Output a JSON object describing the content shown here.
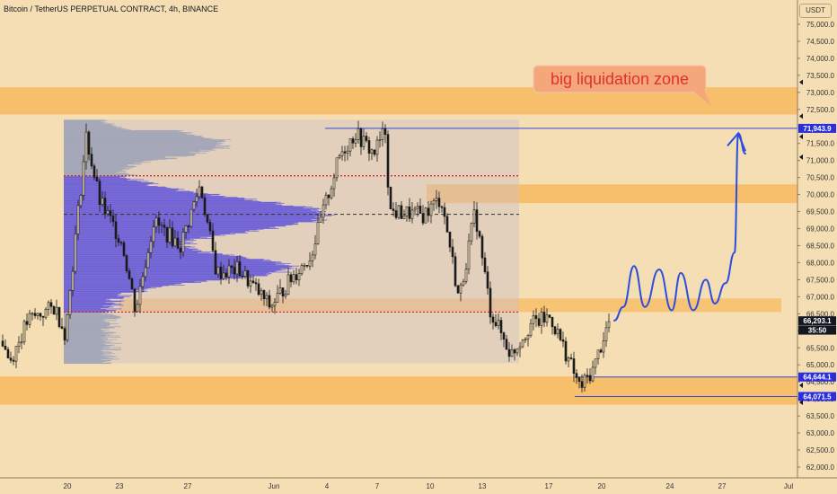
{
  "chart_data": {
    "type": "candlestick",
    "title": "Bitcoin / TetherUS PERPETUAL CONTRACT, 4h, BINANCE",
    "currency": "USDT",
    "annotation": "big liquidation zone",
    "y_ticks": [
      62000,
      62500,
      63000,
      63500,
      64000,
      64500,
      65000,
      65500,
      66000,
      66500,
      67000,
      67500,
      68000,
      68500,
      69000,
      69500,
      70000,
      70500,
      71000,
      71500,
      72000,
      72500,
      73000,
      73500,
      74000,
      74500,
      75000
    ],
    "y_tick_format": "comma-1",
    "x_ticks": [
      "20",
      "23",
      "27",
      "Jun",
      "4",
      "7",
      "10",
      "13",
      "17",
      "20",
      "24",
      "27",
      "Jul"
    ],
    "price_labels": [
      {
        "text": "71,943.9",
        "price": 71943.9,
        "style": "blue"
      },
      {
        "text": "66,293.1",
        "price": 66293.1,
        "style": "dark"
      },
      {
        "text": "35:50",
        "price": 66020,
        "style": "dark-sub"
      },
      {
        "text": "64,644.1",
        "price": 64644.1,
        "style": "blue"
      },
      {
        "text": "64,071.5",
        "price": 64071.5,
        "style": "blue"
      }
    ],
    "zones": [
      {
        "name": "liquidation-zone-upper",
        "from": 72350,
        "to": 73150
      },
      {
        "name": "resistance-zone",
        "from": 69750,
        "to": 70300
      },
      {
        "name": "support-zone",
        "from": 66550,
        "to": 66950
      },
      {
        "name": "liquidation-zone-lower",
        "from": 63830,
        "to": 64660
      }
    ],
    "lines": [
      {
        "name": "high-line",
        "price": 71943.9
      },
      {
        "name": "low-line-a",
        "price": 64644.1
      },
      {
        "name": "low-line-b",
        "price": 64071.5
      }
    ],
    "volume_profile": {
      "top": 72200,
      "bottom": 65050,
      "vah": 70550,
      "poc": 69420,
      "val": 66550
    },
    "candles_summary": {
      "start": 65700,
      "range_high": 72100,
      "range_low": 64400,
      "last": 66293.1
    },
    "projection": [
      66300,
      66700,
      67900,
      66700,
      67800,
      66600,
      67700,
      66600,
      67500,
      66800,
      67400,
      68300,
      71800,
      71200
    ],
    "colors": {
      "background": "#f5deb3",
      "zone": "#f7bf6b",
      "profile": "#5b4fdb",
      "projection": "#2c4ee0",
      "callout_bg": "#f5a77c",
      "callout_text": "#e0322c"
    }
  }
}
